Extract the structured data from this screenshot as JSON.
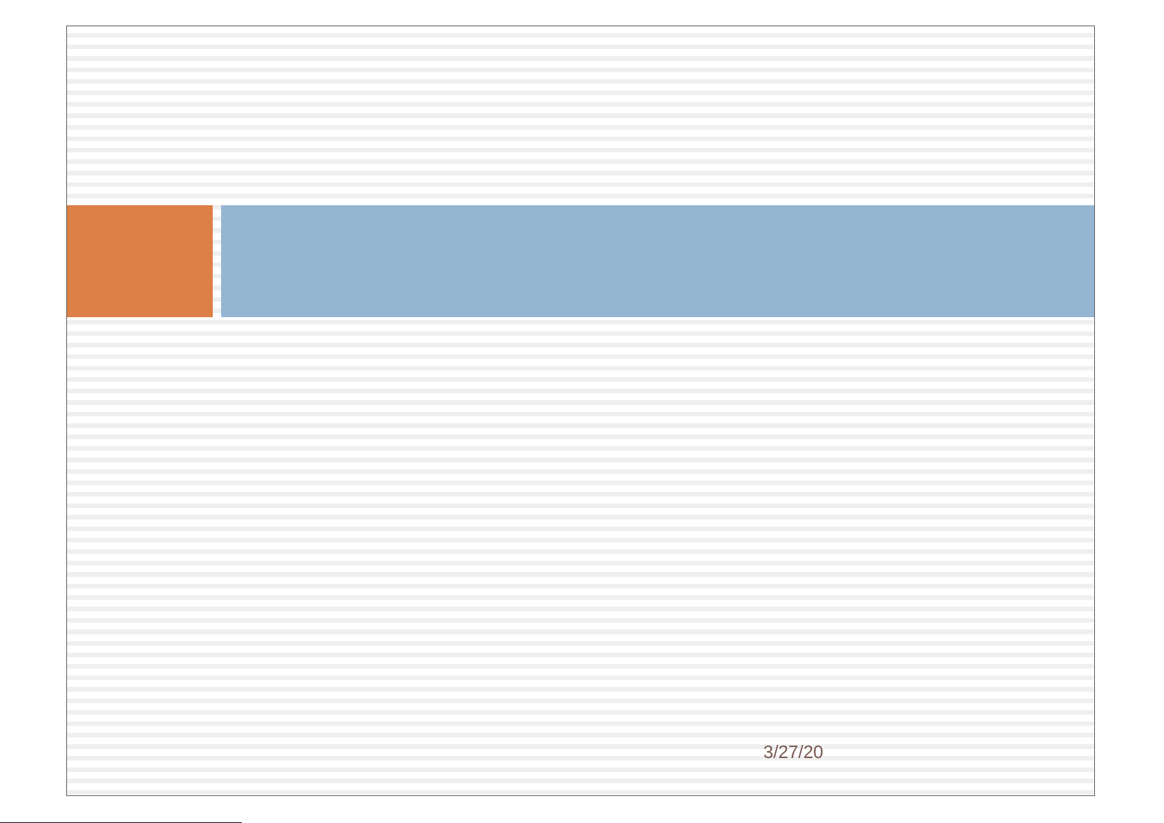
{
  "footer": {
    "date": "3/27/20"
  }
}
